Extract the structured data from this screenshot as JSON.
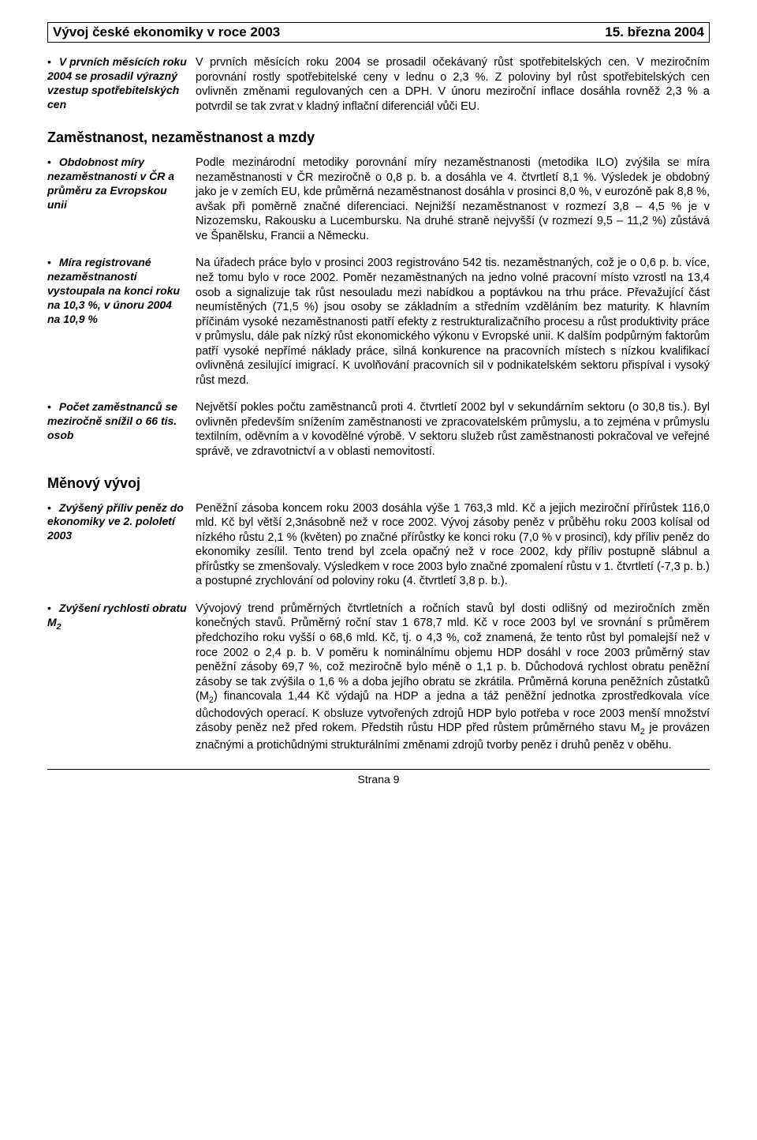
{
  "header": {
    "left": "Vývoj české ekonomiky v roce 2003",
    "right": "15. března 2004"
  },
  "blocks": [
    {
      "side": "V prvních měsících roku 2004 se prosadil výrazný vzestup spotřebitelských cen",
      "body": "V prvních měsících roku 2004 se prosadil očekávaný růst spotřebitelských cen. V meziročním porovnání rostly spotřebitelské ceny v lednu o 2,3 %. Z poloviny byl růst spotřebitelských cen ovlivněn změnami regulovaných cen a DPH. V únoru meziroční inflace dosáhla rovněž 2,3 % a potvrdil se tak zvrat v kladný inflační diferenciál vůči EU."
    }
  ],
  "section1": {
    "title": "Zaměstnanost, nezaměstnanost a mzdy",
    "blocks": [
      {
        "side": "Obdobnost míry nezaměstnanosti v ČR a průměru za Evropskou unii",
        "body": "Podle mezinárodní metodiky porovnání míry nezaměstnanosti (metodika ILO) zvýšila se míra nezaměstnanosti v ČR meziročně o 0,8 p. b. a dosáhla ve 4. čtvrtletí 8,1 %. Výsledek je obdobný jako je v zemích EU, kde průměrná nezaměstnanost dosáhla v prosinci 8,0 %, v eurozóně pak 8,8 %, avšak při poměrně značné diferenciaci. Nejnižší nezaměstnanost v rozmezí 3,8 – 4,5 % je v Nizozemsku, Rakousku a Lucembursku. Na druhé straně nejvyšší (v rozmezí 9,5 – 11,2 %) zůstává ve Španělsku, Francii a Německu."
      },
      {
        "side": "Míra registrované nezaměstnanosti vystoupala na konci roku na 10,3 %, v únoru 2004 na 10,9 %",
        "body": "Na úřadech práce bylo v prosinci 2003 registrováno 542 tis. nezaměstnaných, což je o 0,6 p. b. více, než tomu bylo v roce 2002. Poměr nezaměstnaných na jedno volné pracovní místo vzrostl na 13,4 osob a signalizuje tak růst nesouladu mezi nabídkou a poptávkou na trhu práce. Převažující část neumístěných (71,5 %) jsou osoby se základním a středním vzděláním bez maturity. K hlavním příčinám vysoké nezaměstnanosti patří efekty z restrukturalizačního procesu a růst produktivity práce v průmyslu, dále pak nízký růst ekonomického výkonu v Evropské unii. K dalším podpůrným faktorům patří vysoké nepřímé náklady práce, silná konkurence na pracovních místech s nízkou kvalifikací ovlivněná zesilující imigrací. K uvolňování pracovních sil v podnikatelském sektoru přispíval i vysoký růst mezd."
      },
      {
        "side": "Počet zaměstnanců se meziročně snížil o 66 tis. osob",
        "body": "Největší pokles počtu zaměstnanců proti 4. čtvrtletí 2002 byl v sekundárním sektoru (o 30,8 tis.). Byl ovlivněn především snížením zaměstnanosti ve zpracovatelském průmyslu, a to zejména v průmyslu textilním, oděvním a v kovodělné výrobě. V sektoru služeb růst zaměstnanosti pokračoval ve veřejné správě, ve zdravotnictví a v oblasti nemovitostí."
      }
    ]
  },
  "section2": {
    "title": "Měnový vývoj",
    "blocks": [
      {
        "side": "Zvýšený příliv peněz do ekonomiky ve 2. pololetí 2003",
        "body": "Peněžní zásoba koncem roku 2003 dosáhla výše 1 763,3 mld. Kč a jejich meziroční přírůstek 116,0 mld. Kč byl větší 2,3násobně než v roce 2002. Vývoj zásoby peněz v průběhu roku 2003 kolísal od nízkého růstu 2,1 % (květen) po značné přírůstky ke konci roku (7,0 % v prosinci), kdy příliv peněz do ekonomiky zesílil. Tento trend byl zcela opačný než v roce 2002, kdy příliv postupně slábnul a přírůstky se zmenšovaly. Výsledkem v roce 2003 bylo značné zpomalení růstu v 1. čtvrtletí (-7,3 p. b.) a postupné zrychlování od poloviny roku (4. čtvrtletí 3,8 p. b.)."
      },
      {
        "side_html": "Zvýšení rychlosti obratu M<sub>2</sub>",
        "body_html": "Vývojový trend průměrných čtvrtletních a ročních stavů byl dosti odlišný od meziročních změn konečných stavů. Průměrný roční stav 1 678,7 mld. Kč v roce 2003 byl ve srovnání s průměrem předchozího roku vyšší o 68,6 mld. Kč, tj. o 4,3 %, což znamená, že tento růst byl pomalejší než v roce 2002 o 2,4 p. b. V poměru k nominálnímu objemu HDP dosáhl v roce 2003 průměrný stav peněžní zásoby 69,7 %, což meziročně bylo méně o 1,1 p. b. Důchodová rychlost obratu peněžní zásoby se tak zvýšila o 1,6 % a doba jejího obratu se zkrátila. Průměrná koruna peněžních zůstatků (M<sub>2</sub>) financovala 1,44 Kč výdajů na HDP a jedna a táž peněžní jednotka zprostředkovala více důchodových operací. K obsluze vytvořených zdrojů HDP bylo potřeba v roce 2003 menší množství zásoby peněz než před rokem. Předstih růstu HDP před růstem průměrného stavu M<sub>2</sub> je provázen značnými a protichůdnými strukturálními změnami zdrojů tvorby peněz i druhů peněz v oběhu."
      }
    ]
  },
  "footer": "Strana 9"
}
